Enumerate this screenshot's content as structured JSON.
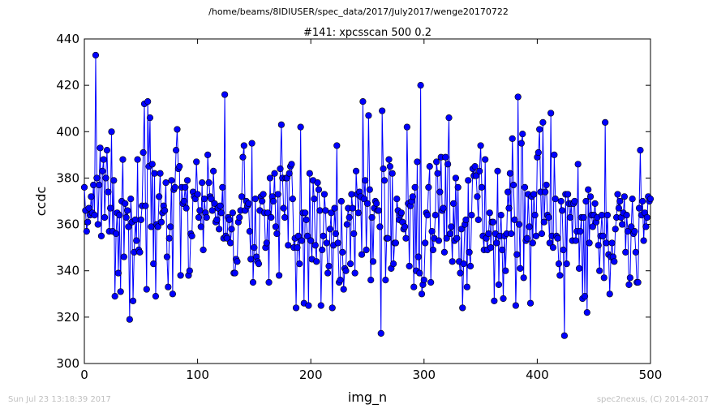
{
  "header": {
    "path": "/home/beams/8IDIUSER/spec_data/2017/July2017/wenge20170722"
  },
  "footer": {
    "timestamp": "Sun Jul 23 13:18:39 2017",
    "credit": "spec2nexus, (C) 2014-2017"
  },
  "chart_data": {
    "type": "line",
    "title": "#141: xpcsscan 500 0.2",
    "xlabel": "img_n",
    "ylabel": "ccdc",
    "xlim": [
      0,
      500
    ],
    "ylim": [
      300,
      440
    ],
    "xticks": [
      0,
      100,
      200,
      300,
      400,
      500
    ],
    "yticks": [
      300,
      320,
      340,
      360,
      380,
      400,
      420,
      440
    ],
    "grid": false,
    "legend": "none",
    "marker": "circle",
    "colors": {
      "series": "#0000ff"
    },
    "x_start": 0,
    "x_step": 1,
    "y": [
      376,
      366,
      357,
      361,
      367,
      364,
      372,
      365,
      377,
      364,
      433,
      380,
      360,
      377,
      393,
      355,
      383,
      388,
      363,
      380,
      392,
      374,
      357,
      367,
      400,
      357,
      379,
      329,
      356,
      365,
      339,
      364,
      331,
      370,
      388,
      346,
      369,
      363,
      366,
      359,
      319,
      371,
      361,
      327,
      348,
      362,
      353,
      388,
      349,
      348,
      362,
      368,
      391,
      412,
      368,
      332,
      413,
      385,
      406,
      359,
      386,
      343,
      382,
      329,
      360,
      359,
      372,
      382,
      361,
      365,
      368,
      366,
      378,
      346,
      333,
      354,
      359,
      379,
      330,
      375,
      376,
      392,
      401,
      384,
      385,
      338,
      376,
      369,
      370,
      376,
      367,
      379,
      338,
      340,
      356,
      355,
      374,
      372,
      371,
      387,
      373,
      363,
      366,
      359,
      378,
      349,
      371,
      365,
      363,
      390,
      378,
      372,
      371,
      366,
      383,
      369,
      361,
      362,
      367,
      358,
      368,
      365,
      376,
      354,
      416,
      355,
      354,
      363,
      362,
      352,
      358,
      365,
      339,
      339,
      345,
      344,
      361,
      363,
      366,
      372,
      389,
      394,
      366,
      370,
      368,
      369,
      357,
      345,
      395,
      335,
      350,
      371,
      346,
      344,
      343,
      366,
      372,
      370,
      373,
      365,
      350,
      352,
      365,
      335,
      380,
      363,
      372,
      370,
      382,
      359,
      356,
      373,
      338,
      384,
      403,
      380,
      367,
      363,
      380,
      380,
      351,
      382,
      385,
      386,
      371,
      350,
      354,
      324,
      350,
      355,
      343,
      402,
      353,
      365,
      326,
      365,
      362,
      355,
      325,
      382,
      353,
      345,
      379,
      371,
      351,
      344,
      378,
      375,
      366,
      325,
      349,
      355,
      373,
      366,
      352,
      339,
      342,
      358,
      365,
      324,
      351,
      367,
      356,
      394,
      352,
      335,
      336,
      370,
      348,
      332,
      341,
      340,
      360,
      367,
      363,
      343,
      373,
      367,
      356,
      339,
      383,
      373,
      365,
      374,
      372,
      347,
      413,
      371,
      379,
      349,
      369,
      407,
      375,
      336,
      363,
      344,
      367,
      370,
      369,
      366,
      366,
      359,
      313,
      409,
      384,
      379,
      336,
      354,
      354,
      388,
      385,
      341,
      382,
      343,
      352,
      352,
      371,
      366,
      362,
      364,
      365,
      361,
      358,
      359,
      354,
      402,
      369,
      342,
      368,
      370,
      372,
      333,
      376,
      340,
      387,
      346,
      339,
      420,
      330,
      334,
      336,
      352,
      365,
      364,
      376,
      385,
      335,
      357,
      349,
      354,
      364,
      387,
      382,
      353,
      374,
      389,
      366,
      367,
      348,
      389,
      354,
      386,
      406,
      356,
      359,
      344,
      369,
      353,
      380,
      354,
      376,
      344,
      339,
      358,
      324,
      343,
      360,
      362,
      333,
      379,
      348,
      342,
      364,
      384,
      381,
      385,
      381,
      372,
      362,
      383,
      394,
      376,
      355,
      349,
      388,
      354,
      349,
      356,
      365,
      350,
      361,
      361,
      327,
      356,
      352,
      383,
      334,
      355,
      364,
      349,
      328,
      355,
      340,
      356,
      374,
      367,
      382,
      356,
      397,
      377,
      362,
      325,
      347,
      415,
      360,
      341,
      395,
      399,
      337,
      376,
      353,
      354,
      373,
      359,
      326,
      372,
      352,
      373,
      364,
      355,
      389,
      391,
      401,
      374,
      356,
      404,
      361,
      374,
      377,
      364,
      363,
      352,
      408,
      355,
      350,
      390,
      371,
      355,
      354,
      343,
      338,
      370,
      366,
      349,
      312,
      373,
      343,
      373,
      369,
      363,
      369,
      353,
      369,
      370,
      353,
      357,
      386,
      341,
      357,
      363,
      328,
      363,
      329,
      370,
      322,
      375,
      352,
      372,
      364,
      359,
      364,
      369,
      361,
      363,
      351,
      340,
      355,
      364,
      355,
      337,
      404,
      352,
      364,
      347,
      330,
      346,
      352,
      346,
      344,
      358,
      363,
      373,
      367,
      370,
      363,
      360,
      365,
      372,
      348,
      364,
      357,
      334,
      337,
      359,
      371,
      356,
      357,
      348,
      335,
      335,
      367,
      392,
      364,
      370,
      353,
      365,
      359,
      363,
      372,
      370,
      371
    ]
  }
}
